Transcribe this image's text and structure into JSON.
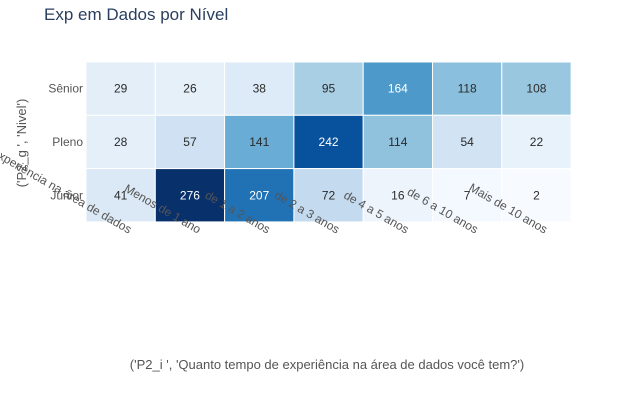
{
  "chart_data": {
    "type": "heatmap",
    "title": "Exp em Dados por Nível",
    "xlabel": "('P2_i ', 'Quanto tempo de experiência na área de dados você tem?')",
    "ylabel": "('P2_g ', 'Nivel')",
    "x_categories": [
      "Não tenho experiência na área de dados",
      "Menos de 1 ano",
      "de 1 a 2 anos",
      "de 2 a 3 anos",
      "de 4 a 5 anos",
      "de 6 a 10 anos",
      "Mais de 10 anos"
    ],
    "y_categories": [
      "Sênior",
      "Pleno",
      "Júnior"
    ],
    "values": [
      [
        29,
        26,
        38,
        95,
        164,
        118,
        108
      ],
      [
        28,
        57,
        141,
        242,
        114,
        54,
        22
      ],
      [
        41,
        276,
        207,
        72,
        16,
        7,
        2
      ]
    ],
    "colorscale": "Blues",
    "zmin": 2,
    "zmax": 276
  }
}
